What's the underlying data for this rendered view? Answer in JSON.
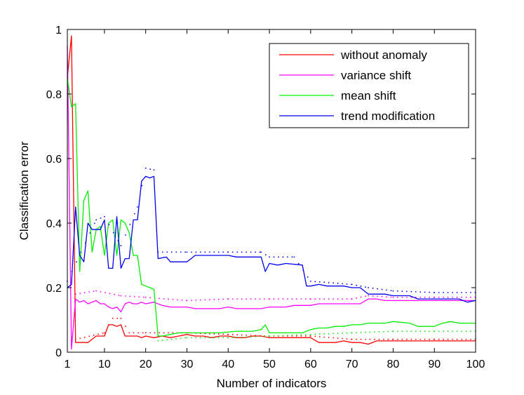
{
  "chart_data": {
    "type": "line",
    "xlabel": "Number of indicators",
    "ylabel": "Classification error",
    "xlim": [
      1,
      100
    ],
    "ylim": [
      0,
      1
    ],
    "xticks": [
      "1",
      "10",
      "20",
      "30",
      "40",
      "50",
      "60",
      "70",
      "80",
      "90",
      "100"
    ],
    "yticks": [
      "0",
      "0.2",
      "0.4",
      "0.6",
      "0.8",
      "1"
    ],
    "legend_position": "top-right",
    "grid": false,
    "series": [
      {
        "name": "without anomaly",
        "color": "#ff0000",
        "points": [
          [
            1,
            0.85
          ],
          [
            2,
            0.98
          ],
          [
            3,
            0.03
          ],
          [
            4,
            0.03
          ],
          [
            5,
            0.03
          ],
          [
            6,
            0.03
          ],
          [
            7,
            0.04
          ],
          [
            8,
            0.05
          ],
          [
            9,
            0.05
          ],
          [
            10,
            0.05
          ],
          [
            11,
            0.085
          ],
          [
            12,
            0.085
          ],
          [
            13,
            0.08
          ],
          [
            14,
            0.085
          ],
          [
            15,
            0.05
          ],
          [
            16,
            0.05
          ],
          [
            17,
            0.05
          ],
          [
            18,
            0.05
          ],
          [
            19,
            0.045
          ],
          [
            20,
            0.05
          ],
          [
            22,
            0.045
          ],
          [
            24,
            0.05
          ],
          [
            26,
            0.045
          ],
          [
            28,
            0.05
          ],
          [
            30,
            0.055
          ],
          [
            32,
            0.05
          ],
          [
            34,
            0.05
          ],
          [
            36,
            0.045
          ],
          [
            38,
            0.05
          ],
          [
            40,
            0.05
          ],
          [
            42,
            0.045
          ],
          [
            44,
            0.045
          ],
          [
            46,
            0.05
          ],
          [
            48,
            0.05
          ],
          [
            50,
            0.045
          ],
          [
            52,
            0.045
          ],
          [
            54,
            0.045
          ],
          [
            56,
            0.045
          ],
          [
            58,
            0.045
          ],
          [
            60,
            0.045
          ],
          [
            62,
            0.03
          ],
          [
            64,
            0.03
          ],
          [
            66,
            0.03
          ],
          [
            68,
            0.035
          ],
          [
            70,
            0.03
          ],
          [
            72,
            0.03
          ],
          [
            74,
            0.025
          ],
          [
            76,
            0.035
          ],
          [
            78,
            0.035
          ],
          [
            80,
            0.035
          ],
          [
            85,
            0.035
          ],
          [
            90,
            0.035
          ],
          [
            95,
            0.035
          ],
          [
            100,
            0.035
          ]
        ],
        "dotted_band": [
          [
            3,
            0.04
          ],
          [
            10,
            0.06
          ],
          [
            12,
            0.105
          ],
          [
            14,
            0.105
          ],
          [
            16,
            0.06
          ],
          [
            20,
            0.06
          ],
          [
            30,
            0.06
          ],
          [
            40,
            0.055
          ],
          [
            50,
            0.05
          ],
          [
            60,
            0.05
          ],
          [
            70,
            0.04
          ],
          [
            80,
            0.04
          ],
          [
            90,
            0.04
          ],
          [
            100,
            0.04
          ]
        ]
      },
      {
        "name": "variance shift",
        "color": "#ff00ff",
        "points": [
          [
            1,
            0.95
          ],
          [
            2,
            0.01
          ],
          [
            3,
            0.165
          ],
          [
            4,
            0.155
          ],
          [
            5,
            0.16
          ],
          [
            6,
            0.15
          ],
          [
            7,
            0.155
          ],
          [
            8,
            0.16
          ],
          [
            9,
            0.15
          ],
          [
            10,
            0.15
          ],
          [
            11,
            0.14
          ],
          [
            12,
            0.135
          ],
          [
            13,
            0.14
          ],
          [
            14,
            0.125
          ],
          [
            15,
            0.15
          ],
          [
            16,
            0.155
          ],
          [
            17,
            0.15
          ],
          [
            18,
            0.15
          ],
          [
            19,
            0.155
          ],
          [
            20,
            0.15
          ],
          [
            22,
            0.155
          ],
          [
            24,
            0.145
          ],
          [
            26,
            0.14
          ],
          [
            28,
            0.14
          ],
          [
            30,
            0.14
          ],
          [
            32,
            0.135
          ],
          [
            34,
            0.135
          ],
          [
            36,
            0.135
          ],
          [
            38,
            0.135
          ],
          [
            40,
            0.14
          ],
          [
            42,
            0.135
          ],
          [
            44,
            0.135
          ],
          [
            46,
            0.135
          ],
          [
            48,
            0.135
          ],
          [
            50,
            0.14
          ],
          [
            52,
            0.14
          ],
          [
            54,
            0.14
          ],
          [
            56,
            0.145
          ],
          [
            58,
            0.145
          ],
          [
            60,
            0.145
          ],
          [
            62,
            0.15
          ],
          [
            64,
            0.15
          ],
          [
            66,
            0.15
          ],
          [
            68,
            0.15
          ],
          [
            70,
            0.15
          ],
          [
            72,
            0.15
          ],
          [
            74,
            0.165
          ],
          [
            76,
            0.165
          ],
          [
            78,
            0.16
          ],
          [
            80,
            0.16
          ],
          [
            85,
            0.16
          ],
          [
            90,
            0.16
          ],
          [
            95,
            0.16
          ],
          [
            100,
            0.16
          ]
        ],
        "dotted_band": [
          [
            3,
            0.18
          ],
          [
            8,
            0.19
          ],
          [
            14,
            0.175
          ],
          [
            20,
            0.17
          ],
          [
            30,
            0.16
          ],
          [
            40,
            0.165
          ],
          [
            50,
            0.165
          ],
          [
            60,
            0.165
          ],
          [
            70,
            0.165
          ],
          [
            74,
            0.175
          ],
          [
            80,
            0.17
          ],
          [
            90,
            0.17
          ],
          [
            100,
            0.17
          ]
        ]
      },
      {
        "name": "mean shift",
        "color": "#00ee00",
        "points": [
          [
            1,
            0.85
          ],
          [
            2,
            0.76
          ],
          [
            3,
            0.77
          ],
          [
            4,
            0.25
          ],
          [
            5,
            0.47
          ],
          [
            6,
            0.5
          ],
          [
            7,
            0.31
          ],
          [
            8,
            0.38
          ],
          [
            9,
            0.39
          ],
          [
            10,
            0.3
          ],
          [
            11,
            0.4
          ],
          [
            12,
            0.41
          ],
          [
            13,
            0.3
          ],
          [
            14,
            0.41
          ],
          [
            15,
            0.4
          ],
          [
            16,
            0.37
          ],
          [
            17,
            0.3
          ],
          [
            18,
            0.3
          ],
          [
            19,
            0.21
          ],
          [
            20,
            0.205
          ],
          [
            21,
            0.2
          ],
          [
            22,
            0.195
          ],
          [
            23,
            0.05
          ],
          [
            24,
            0.05
          ],
          [
            26,
            0.055
          ],
          [
            28,
            0.06
          ],
          [
            30,
            0.06
          ],
          [
            34,
            0.06
          ],
          [
            38,
            0.06
          ],
          [
            42,
            0.065
          ],
          [
            46,
            0.065
          ],
          [
            48,
            0.07
          ],
          [
            49,
            0.085
          ],
          [
            50,
            0.06
          ],
          [
            54,
            0.06
          ],
          [
            58,
            0.06
          ],
          [
            60,
            0.07
          ],
          [
            62,
            0.075
          ],
          [
            64,
            0.075
          ],
          [
            66,
            0.08
          ],
          [
            68,
            0.08
          ],
          [
            70,
            0.085
          ],
          [
            72,
            0.085
          ],
          [
            74,
            0.09
          ],
          [
            78,
            0.09
          ],
          [
            80,
            0.095
          ],
          [
            84,
            0.09
          ],
          [
            86,
            0.08
          ],
          [
            90,
            0.08
          ],
          [
            92,
            0.09
          ],
          [
            94,
            0.095
          ],
          [
            96,
            0.09
          ],
          [
            98,
            0.09
          ],
          [
            100,
            0.09
          ]
        ],
        "dotted_band": [
          [
            23,
            0.035
          ],
          [
            30,
            0.045
          ],
          [
            40,
            0.045
          ],
          [
            50,
            0.05
          ],
          [
            60,
            0.055
          ],
          [
            70,
            0.06
          ],
          [
            80,
            0.065
          ],
          [
            90,
            0.065
          ],
          [
            100,
            0.065
          ]
        ]
      },
      {
        "name": "trend modification",
        "color": "#0000ee",
        "points": [
          [
            1,
            0.2
          ],
          [
            2,
            0.21
          ],
          [
            3,
            0.45
          ],
          [
            4,
            0.3
          ],
          [
            5,
            0.28
          ],
          [
            6,
            0.4
          ],
          [
            7,
            0.38
          ],
          [
            8,
            0.38
          ],
          [
            9,
            0.38
          ],
          [
            10,
            0.41
          ],
          [
            11,
            0.26
          ],
          [
            12,
            0.26
          ],
          [
            13,
            0.42
          ],
          [
            14,
            0.26
          ],
          [
            15,
            0.29
          ],
          [
            16,
            0.29
          ],
          [
            17,
            0.41
          ],
          [
            18,
            0.41
          ],
          [
            19,
            0.53
          ],
          [
            20,
            0.545
          ],
          [
            21,
            0.54
          ],
          [
            22,
            0.545
          ],
          [
            23,
            0.29
          ],
          [
            25,
            0.295
          ],
          [
            26,
            0.28
          ],
          [
            30,
            0.28
          ],
          [
            32,
            0.3
          ],
          [
            40,
            0.3
          ],
          [
            42,
            0.295
          ],
          [
            48,
            0.295
          ],
          [
            49,
            0.25
          ],
          [
            50,
            0.275
          ],
          [
            52,
            0.27
          ],
          [
            54,
            0.275
          ],
          [
            58,
            0.27
          ],
          [
            59,
            0.205
          ],
          [
            60,
            0.205
          ],
          [
            62,
            0.21
          ],
          [
            64,
            0.205
          ],
          [
            68,
            0.205
          ],
          [
            70,
            0.2
          ],
          [
            72,
            0.2
          ],
          [
            74,
            0.18
          ],
          [
            78,
            0.18
          ],
          [
            80,
            0.175
          ],
          [
            84,
            0.175
          ],
          [
            86,
            0.165
          ],
          [
            90,
            0.165
          ],
          [
            94,
            0.165
          ],
          [
            96,
            0.165
          ],
          [
            98,
            0.155
          ],
          [
            100,
            0.16
          ]
        ],
        "dotted_band": [
          [
            1,
            0.22
          ],
          [
            8,
            0.41
          ],
          [
            10,
            0.42
          ],
          [
            14,
            0.33
          ],
          [
            18,
            0.45
          ],
          [
            20,
            0.57
          ],
          [
            22,
            0.565
          ],
          [
            23,
            0.31
          ],
          [
            30,
            0.31
          ],
          [
            40,
            0.31
          ],
          [
            48,
            0.31
          ],
          [
            50,
            0.295
          ],
          [
            56,
            0.295
          ],
          [
            60,
            0.22
          ],
          [
            70,
            0.21
          ],
          [
            74,
            0.2
          ],
          [
            80,
            0.19
          ],
          [
            90,
            0.185
          ],
          [
            100,
            0.185
          ]
        ]
      }
    ]
  }
}
